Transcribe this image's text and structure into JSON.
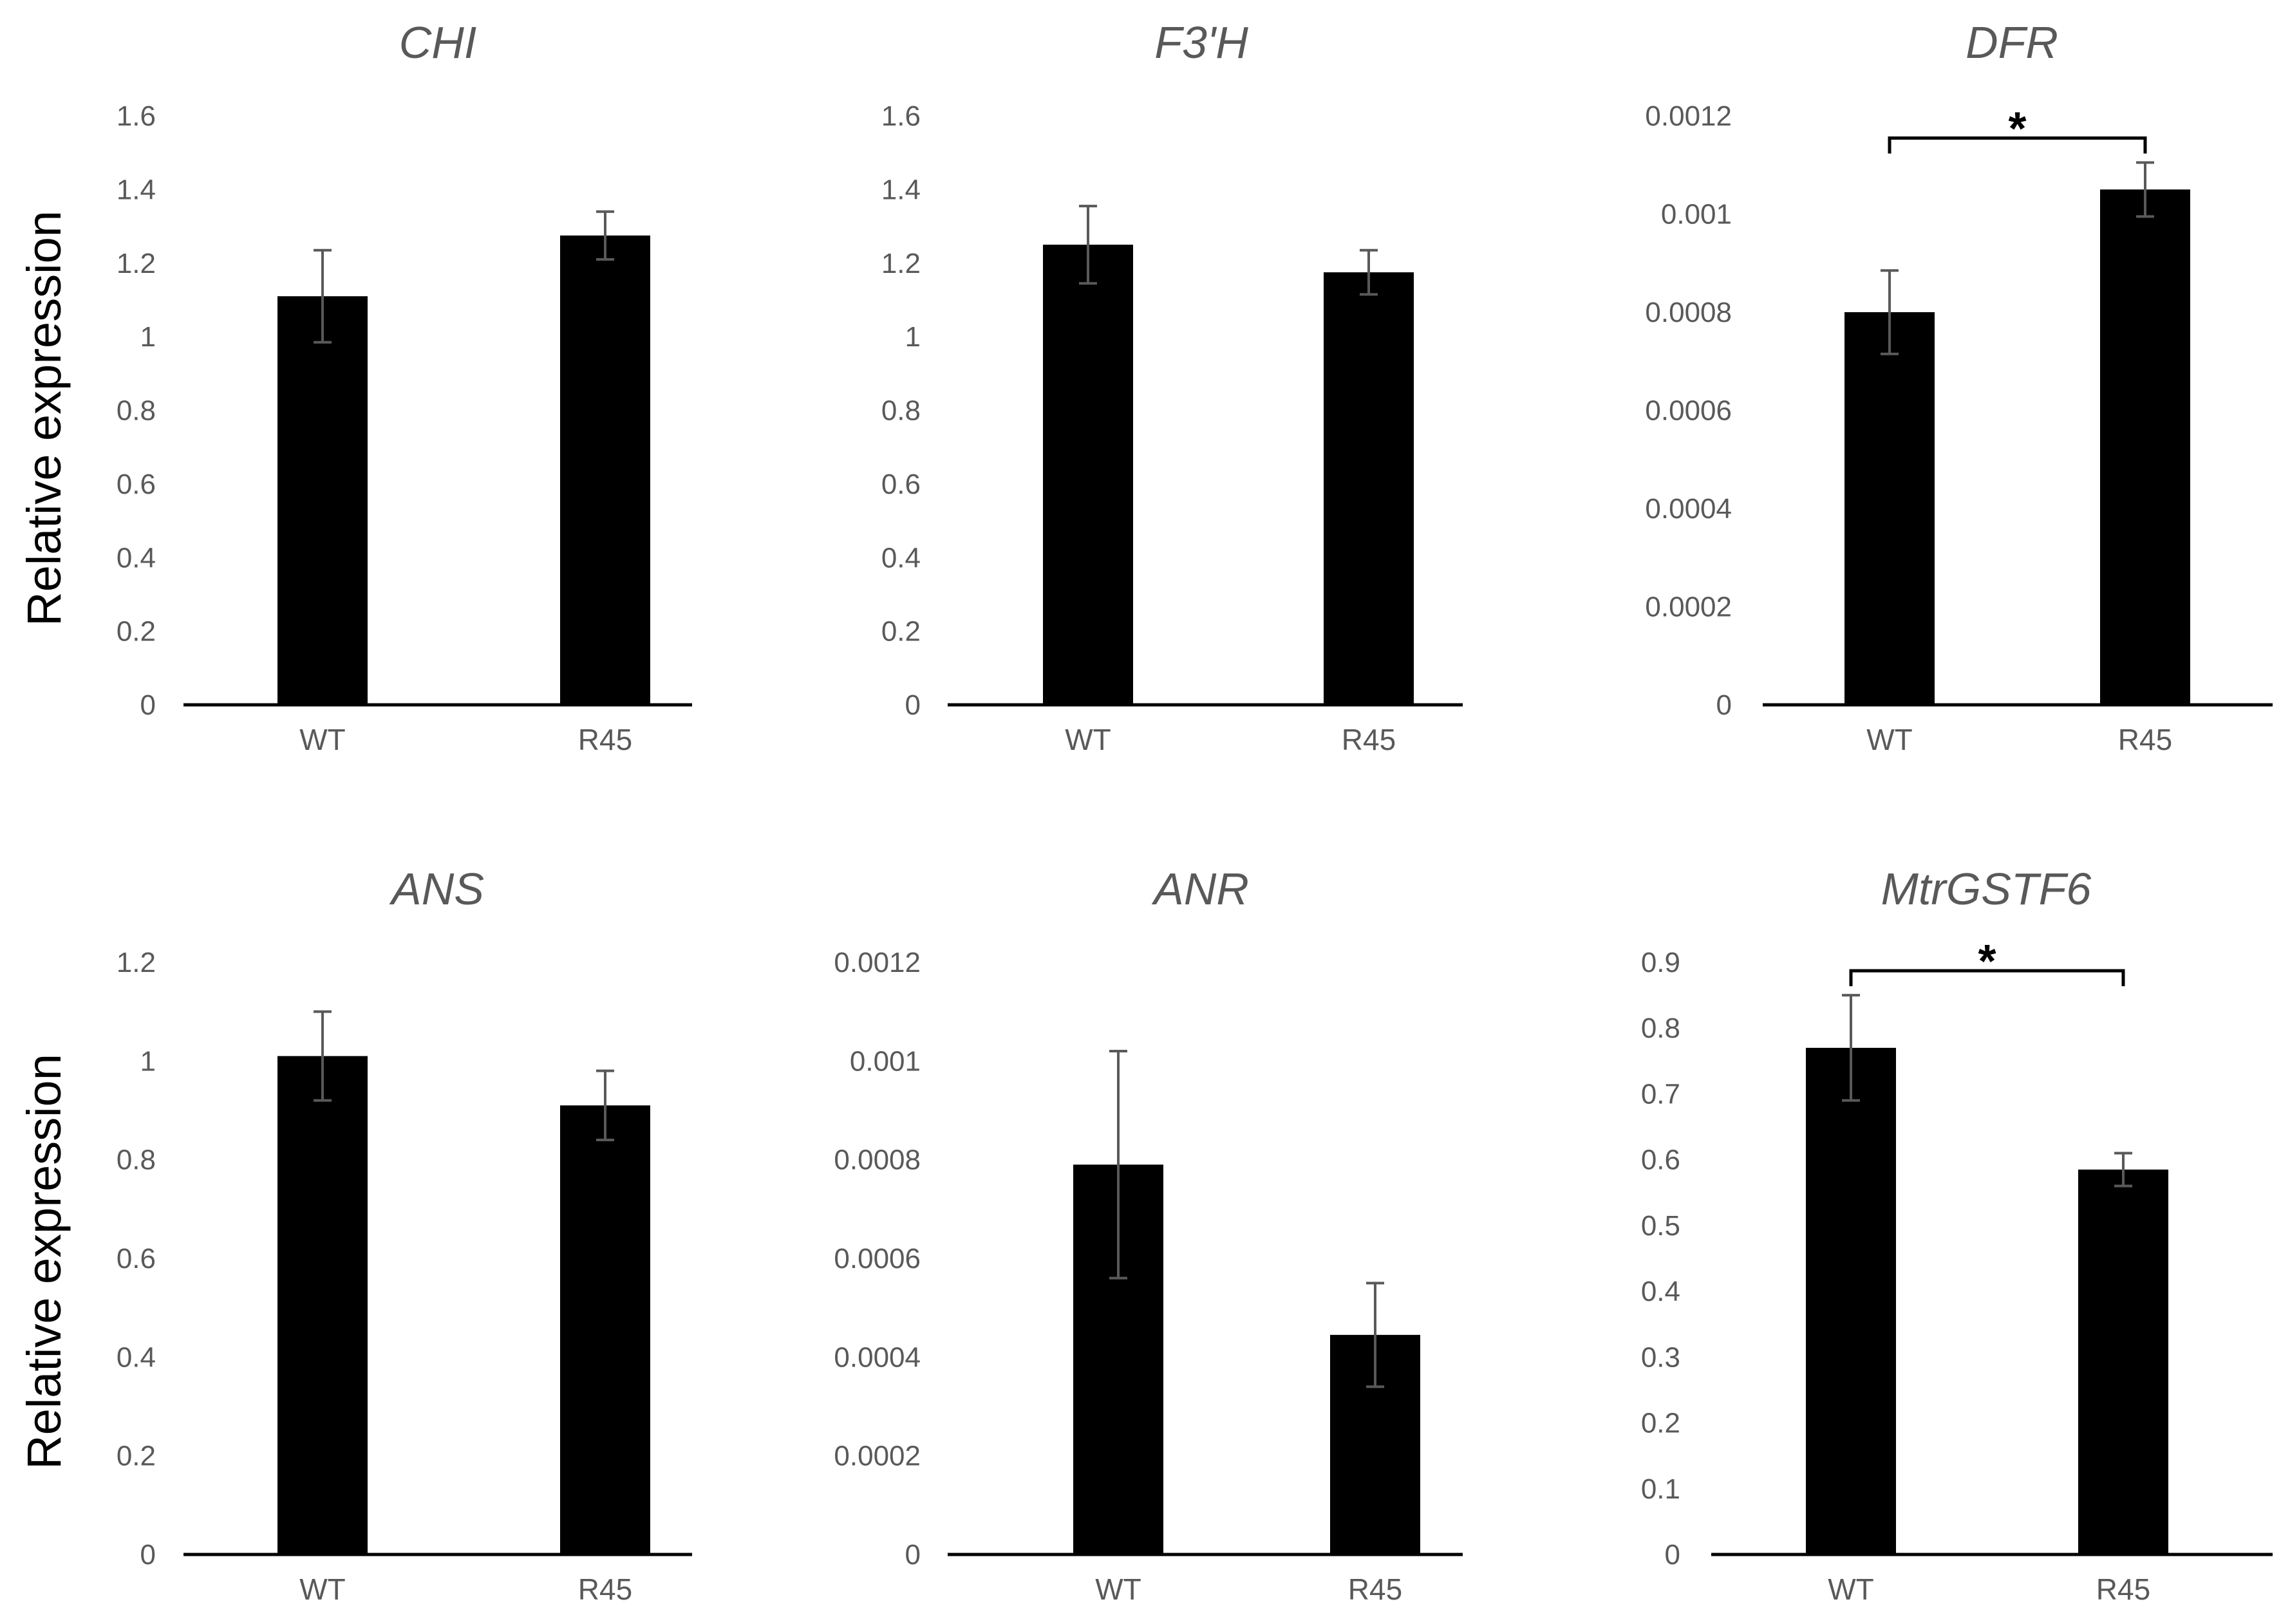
{
  "figure": {
    "ylabel_top": "Relative expression",
    "ylabel_bottom": "Relative expression"
  },
  "colors": {
    "bar": "#000000",
    "axis": "#000000",
    "error": "#595959",
    "text": "#595959"
  },
  "chart_data": [
    {
      "type": "bar",
      "title": "CHI",
      "categories": [
        "WT",
        "R45"
      ],
      "values": [
        1.11,
        1.275
      ],
      "errors": [
        0.125,
        0.065
      ],
      "ylim": [
        0,
        1.6
      ],
      "ticks": [
        "0",
        "0.2",
        "0.4",
        "0.6",
        "0.8",
        "1",
        "1.2",
        "1.4",
        "1.6"
      ],
      "ylabel": "Relative expression",
      "xlabel": "",
      "significance": null
    },
    {
      "type": "bar",
      "title": "F3'H",
      "categories": [
        "WT",
        "R45"
      ],
      "values": [
        1.25,
        1.175
      ],
      "errors": [
        0.105,
        0.06
      ],
      "ylim": [
        0,
        1.6
      ],
      "ticks": [
        "0",
        "0.2",
        "0.4",
        "0.6",
        "0.8",
        "1",
        "1.2",
        "1.4",
        "1.6"
      ],
      "ylabel": "",
      "xlabel": "",
      "significance": null
    },
    {
      "type": "bar",
      "title": "DFR",
      "categories": [
        "WT",
        "R45"
      ],
      "values": [
        0.0008,
        0.00105
      ],
      "errors": [
        8.5e-05,
        5.5e-05
      ],
      "ylim": [
        0,
        0.0012
      ],
      "ticks": [
        "0",
        "0.0002",
        "0.0004",
        "0.0006",
        "0.0008",
        "0.001",
        "0.0012"
      ],
      "ylabel": "",
      "xlabel": "",
      "significance": "*"
    },
    {
      "type": "bar",
      "title": "ANS",
      "categories": [
        "WT",
        "R45"
      ],
      "values": [
        1.01,
        0.91
      ],
      "errors": [
        0.09,
        0.07
      ],
      "ylim": [
        0,
        1.2
      ],
      "ticks": [
        "0",
        "0.2",
        "0.4",
        "0.6",
        "0.8",
        "1",
        "1.2"
      ],
      "ylabel": "Relative expression",
      "xlabel": "",
      "significance": null
    },
    {
      "type": "bar",
      "title": "ANR",
      "categories": [
        "WT",
        "R45"
      ],
      "values": [
        0.00079,
        0.000445
      ],
      "errors": [
        0.00023,
        0.000105
      ],
      "ylim": [
        0,
        0.0012
      ],
      "ticks": [
        "0",
        "0.0002",
        "0.0004",
        "0.0006",
        "0.0008",
        "0.001",
        "0.0012"
      ],
      "ylabel": "",
      "xlabel": "",
      "significance": null
    },
    {
      "type": "bar",
      "title": "MtrGSTF6",
      "categories": [
        "WT",
        "R45"
      ],
      "values": [
        0.77,
        0.585
      ],
      "errors": [
        0.08,
        0.025
      ],
      "ylim": [
        0,
        0.9
      ],
      "ticks": [
        "0",
        "0.1",
        "0.2",
        "0.3",
        "0.4",
        "0.5",
        "0.6",
        "0.7",
        "0.8",
        "0.9"
      ],
      "ylabel": "",
      "xlabel": "",
      "significance": "*"
    }
  ]
}
